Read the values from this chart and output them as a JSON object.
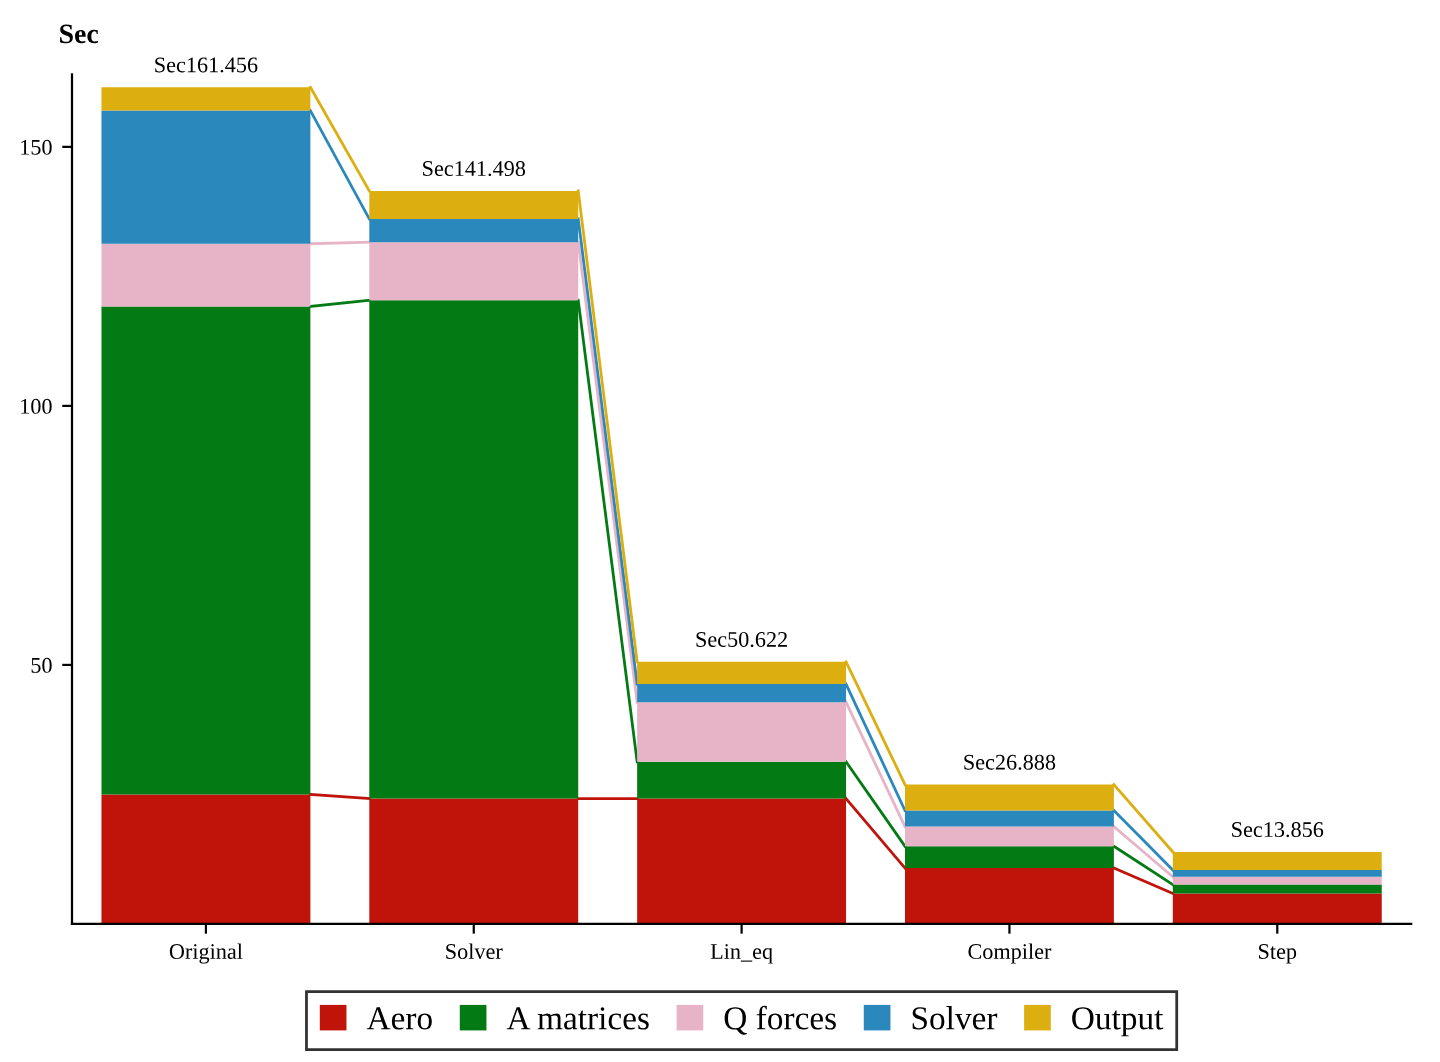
{
  "chart_data": {
    "type": "bar",
    "stacked": true,
    "ylabel": "Sec",
    "categories": [
      "Original",
      "Solver",
      "Lin_eq",
      "Compiler",
      "Step"
    ],
    "series": [
      {
        "name": "Aero",
        "color": "#c0140a",
        "values": [
          25,
          24.2,
          24.2,
          10.8,
          5.9
        ]
      },
      {
        "name": "A matrices",
        "color": "#047a14",
        "values": [
          94.2,
          96.2,
          7.1,
          4.2,
          1.7
        ]
      },
      {
        "name": "Q forces",
        "color": "#e6b4c6",
        "values": [
          12.1,
          11.2,
          11.5,
          3.8,
          1.5
        ]
      },
      {
        "name": "Solver",
        "color": "#2a88bc",
        "values": [
          25.7,
          4.5,
          3.5,
          3.1,
          1.3
        ]
      },
      {
        "name": "Output",
        "color": "#dcae10",
        "values": [
          4.5,
          5.4,
          4.3,
          5.0,
          3.5
        ]
      }
    ],
    "totals": [
      "Sec161.456",
      "Sec141.498",
      "Sec50.622",
      "Sec26.888",
      "Sec13.856"
    ],
    "ylim": [
      0,
      164
    ],
    "yticks": [
      50,
      100,
      150
    ],
    "grid": false,
    "legend": "bottom"
  }
}
